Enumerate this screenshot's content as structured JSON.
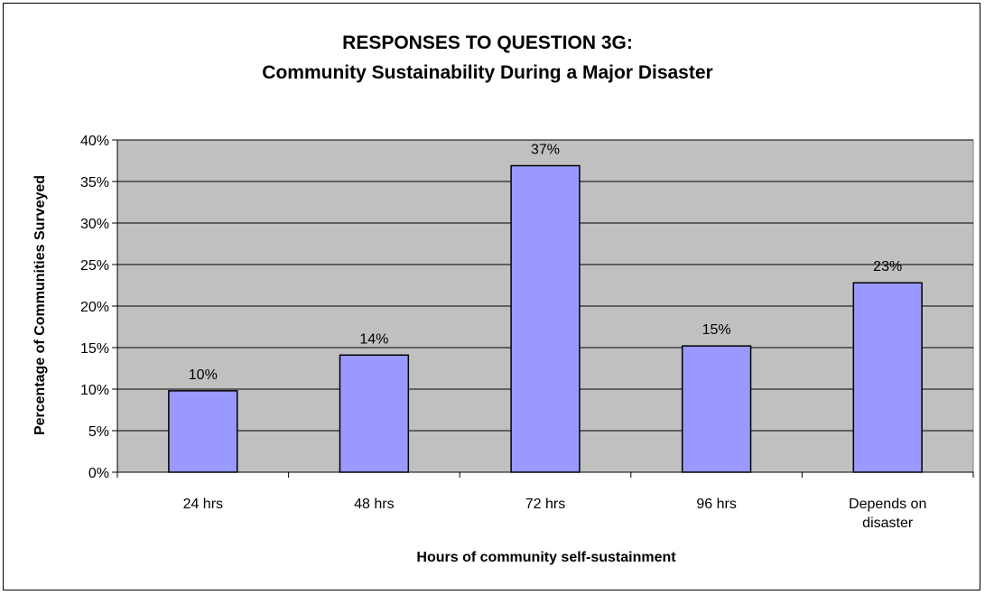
{
  "chart_data": {
    "type": "bar",
    "title": "RESPONSES TO QUESTION 3G:",
    "subtitle": "Community Sustainability During a Major Disaster",
    "xlabel": "Hours of community self-sustainment",
    "ylabel": "Percentage of Communities Surveyed",
    "categories": [
      [
        "24 hrs"
      ],
      [
        "48 hrs"
      ],
      [
        "72 hrs"
      ],
      [
        "96 hrs"
      ],
      [
        "Depends on",
        "disaster"
      ]
    ],
    "values": [
      0.098,
      0.141,
      0.369,
      0.152,
      0.228
    ],
    "data_labels": [
      "10%",
      "14%",
      "37%",
      "15%",
      "23%"
    ],
    "ylim": [
      0,
      0.4
    ],
    "yticks": [
      0,
      0.05,
      0.1,
      0.15,
      0.2,
      0.25,
      0.3,
      0.35,
      0.4
    ],
    "ytick_labels": [
      "0%",
      "5%",
      "10%",
      "15%",
      "20%",
      "25%",
      "30%",
      "35%",
      "40%"
    ],
    "grid": true,
    "colors": {
      "bar": "#9999ff",
      "plot_background": "#c0c0c0",
      "bar_outline": "#000000"
    }
  }
}
